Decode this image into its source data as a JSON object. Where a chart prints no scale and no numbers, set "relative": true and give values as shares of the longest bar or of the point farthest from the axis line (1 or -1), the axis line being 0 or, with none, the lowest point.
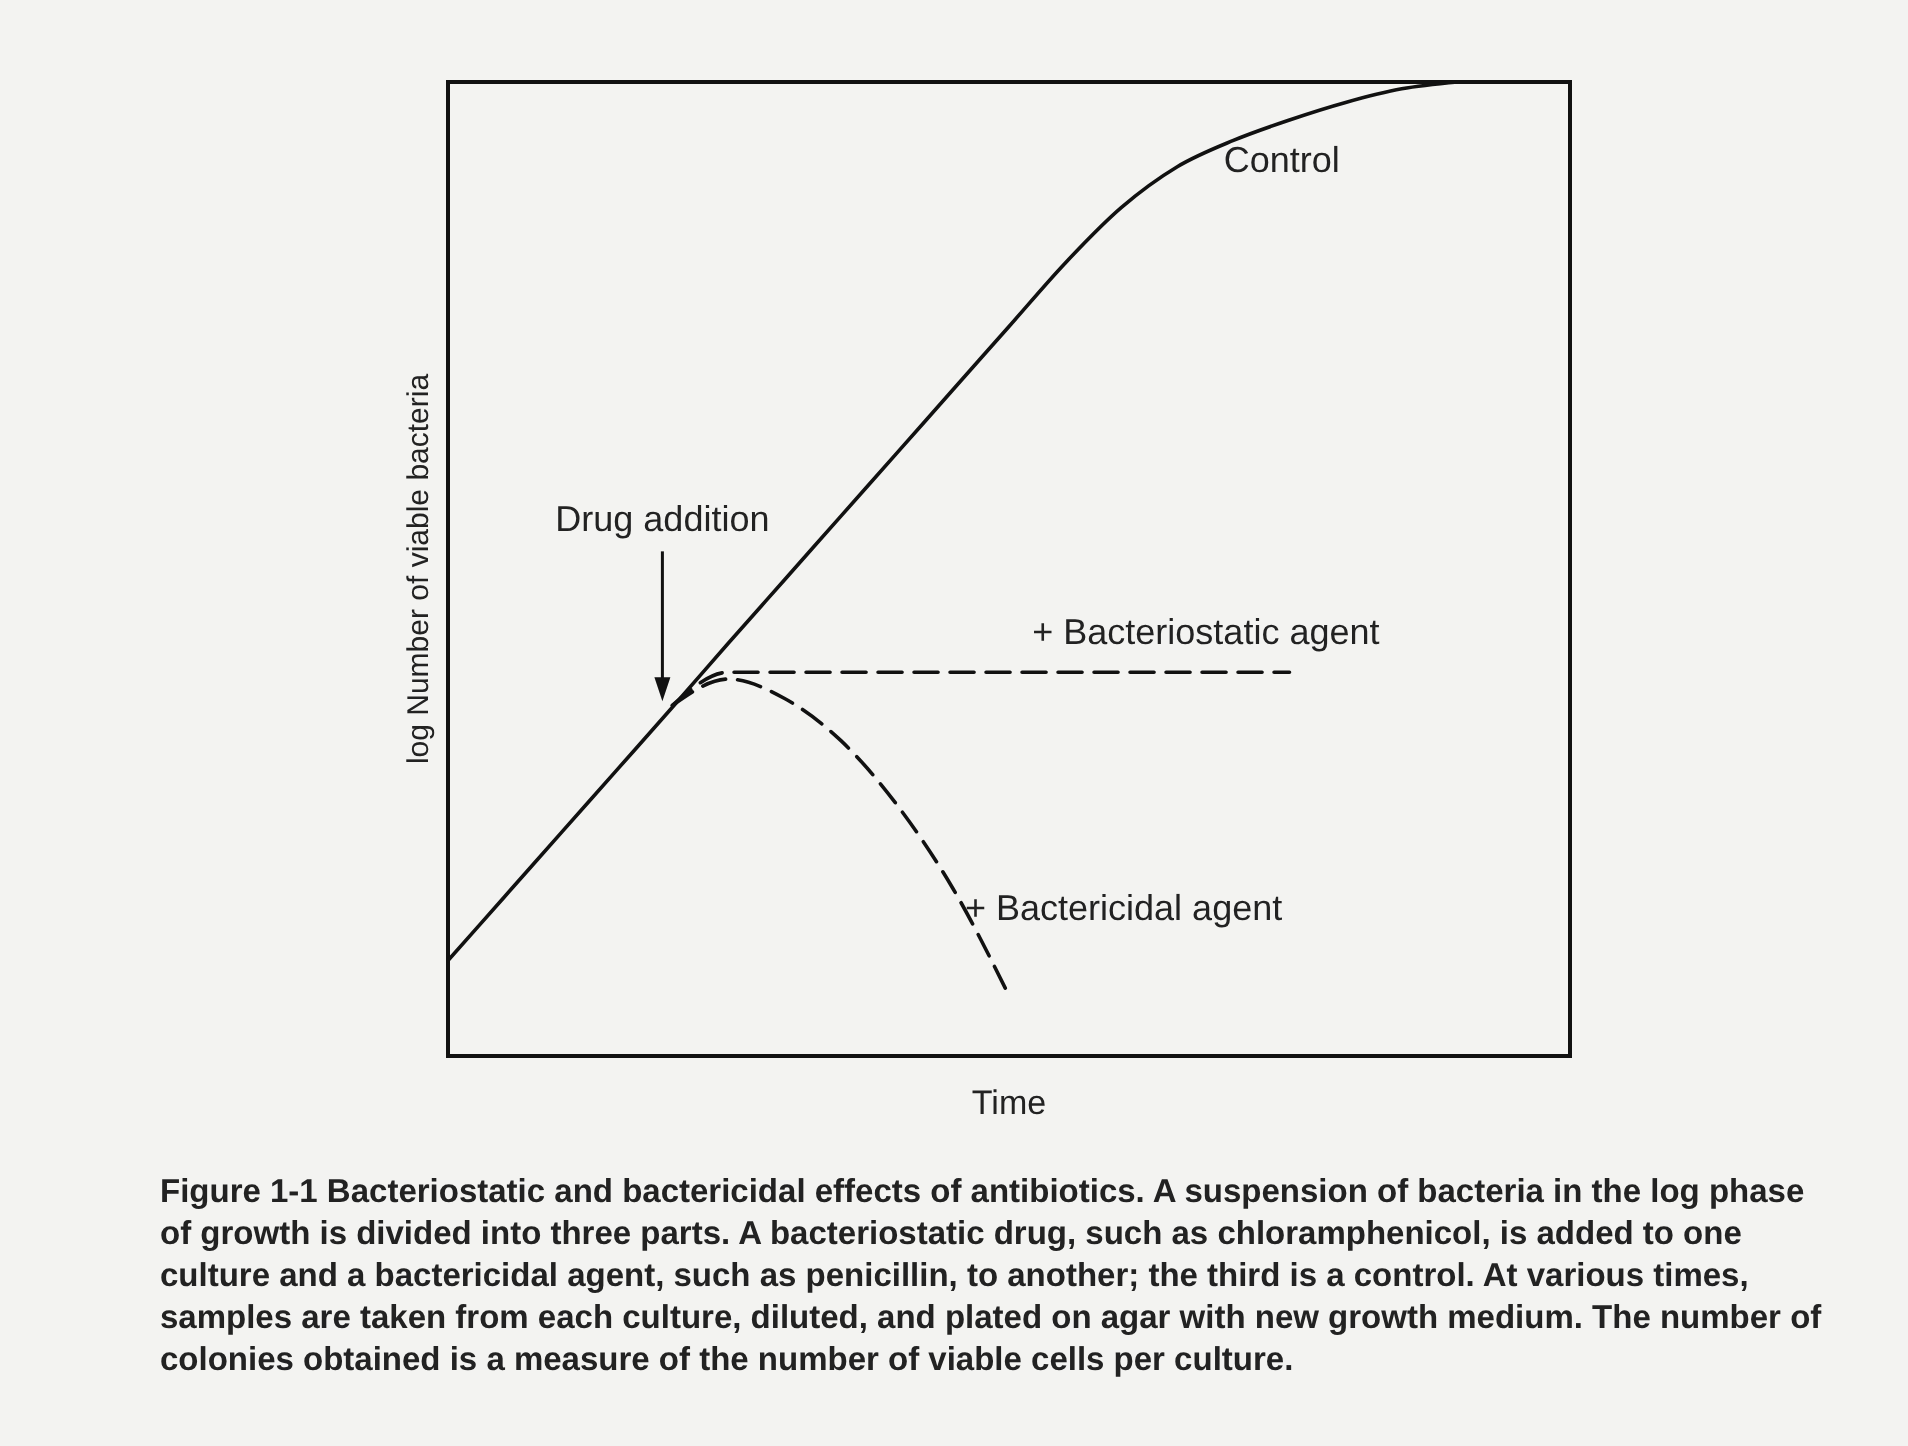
{
  "chart_data": {
    "type": "line",
    "relative": true,
    "xlabel": "Time",
    "ylabel": "log Number of viable bacteria",
    "categories": [
      null,
      null,
      null,
      null,
      null,
      null,
      null,
      null,
      null,
      null,
      null,
      null,
      null,
      null,
      null,
      null,
      null,
      null,
      null,
      null,
      null
    ],
    "series": [
      {
        "name": "Control",
        "color": "#111111",
        "line_style": "solid",
        "values": [
          0.098,
          0.163,
          0.228,
          0.293,
          0.358,
          0.424,
          0.489,
          0.554,
          0.619,
          0.684,
          0.749,
          0.814,
          0.871,
          0.913,
          0.94,
          0.961,
          0.979,
          0.993,
          1.0,
          null,
          null
        ]
      },
      {
        "name": "+ Bacteriostatic agent",
        "color": "#111111",
        "line_style": "dashed",
        "values": [
          null,
          null,
          null,
          null,
          0.36,
          0.394,
          0.394,
          0.394,
          0.394,
          0.394,
          0.394,
          0.394,
          0.394,
          0.394,
          0.394,
          0.394,
          null,
          null,
          null,
          null,
          null
        ]
      },
      {
        "name": "+ Bactericidal agent",
        "color": "#111111",
        "line_style": "dashed",
        "values": [
          null,
          null,
          null,
          null,
          0.36,
          0.387,
          0.367,
          0.324,
          0.258,
          0.172,
          0.062,
          null,
          null,
          null,
          null,
          null,
          null,
          null,
          null,
          null,
          null
        ]
      }
    ],
    "grid": false,
    "legend": false,
    "marker": "none",
    "annotations": [
      "Drug addition",
      "Figure 1-1   Bacteriostatic and bactericidal effects of antibiotics. A suspension of bacteria in the log phase of growth is divided into three parts. A bacteriostatic drug, such as chloramphenicol, is added to one culture and a bactericidal agent, such as penicillin, to another; the third is a control. At various times, samples are taken from each culture, diluted, and plated on agar with new growth medium. The number of colonies obtained is a measure of the number of viable cells per culture."
    ]
  }
}
